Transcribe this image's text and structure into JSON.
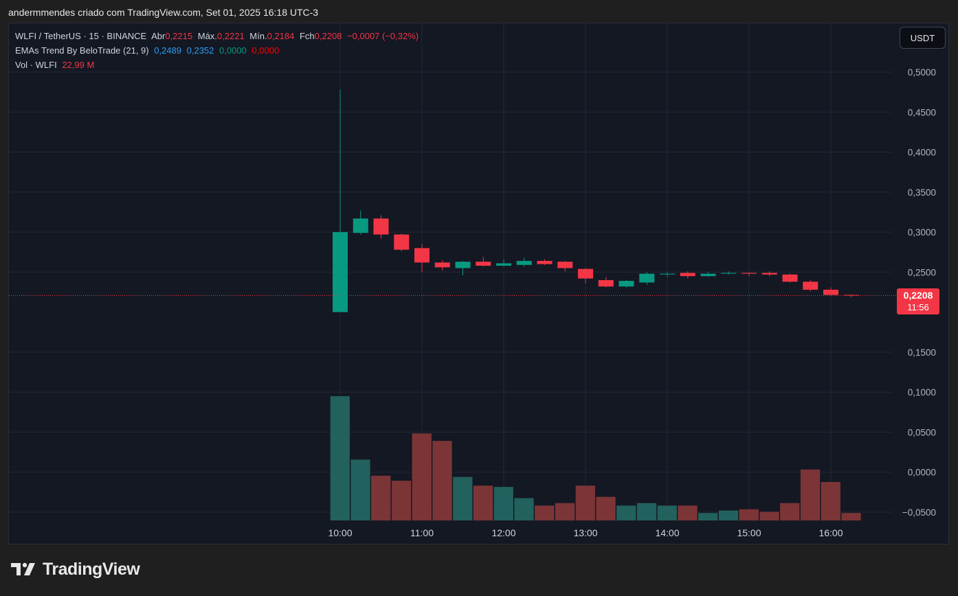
{
  "caption": "andermmendes criado com TradingView.com, Set 01, 2025 16:18 UTC-3",
  "legend": {
    "symbol": "WLFI / TetherUS · 15 · BINANCE",
    "open_label": "Abr",
    "open": "0,2215",
    "high_label": "Máx.",
    "high": "0,2221",
    "low_label": "Mín.",
    "low": "0,2184",
    "close_label": "Fch",
    "close": "0,2208",
    "change": "−0,0007 (−0,32%)",
    "ema_name": "EMAs Trend By BeloTrade (21, 9)",
    "ema_v1": "0,2489",
    "ema_v2": "0,2352",
    "ema_v3": "0,0000",
    "ema_v4": "0,0000",
    "vol_name": "Vol · WLFI",
    "vol_value": "22,99 M"
  },
  "currency_button": "USDT",
  "price_tag": {
    "price": "0,2208",
    "countdown": "11:56"
  },
  "logo_text": "TradingView",
  "colors": {
    "up": "#089981",
    "down": "#f23645",
    "vol_up": "#22615d",
    "vol_down": "#7c3537",
    "background": "#141823",
    "grid": "#242836"
  },
  "chart_data": {
    "type": "candlestick",
    "interval": "15",
    "last_price": 0.2208,
    "y_ticks": [
      "0,5000",
      "0,4500",
      "0,4000",
      "0,3500",
      "0,3000",
      "0,2500",
      "0,1500",
      "0,1000",
      "0,0500",
      "0,0000",
      "−0,0500"
    ],
    "y_tick_values": [
      0.5,
      0.45,
      0.4,
      0.35,
      0.3,
      0.25,
      0.15,
      0.1,
      0.05,
      0.0,
      -0.05
    ],
    "ylim": [
      -0.062,
      0.53
    ],
    "x_ticks": [
      "10:00",
      "11:00",
      "12:00",
      "13:00",
      "14:00",
      "15:00",
      "16:00"
    ],
    "x_tick_values": [
      "10:00",
      "11:00",
      "12:00",
      "13:00",
      "14:00",
      "15:00",
      "16:00"
    ],
    "time": [
      "10:00",
      "10:15",
      "10:30",
      "10:45",
      "11:00",
      "11:15",
      "11:30",
      "11:45",
      "12:00",
      "12:15",
      "12:30",
      "12:45",
      "13:00",
      "13:15",
      "13:30",
      "13:45",
      "14:00",
      "14:15",
      "14:30",
      "14:45",
      "15:00",
      "15:15",
      "15:30",
      "15:45",
      "16:00",
      "16:15"
    ],
    "candles": [
      {
        "o": 0.2,
        "h": 0.478,
        "l": 0.2,
        "c": 0.3
      },
      {
        "o": 0.299,
        "h": 0.327,
        "l": 0.297,
        "c": 0.317
      },
      {
        "o": 0.317,
        "h": 0.321,
        "l": 0.292,
        "c": 0.297
      },
      {
        "o": 0.297,
        "h": 0.298,
        "l": 0.276,
        "c": 0.278
      },
      {
        "o": 0.28,
        "h": 0.285,
        "l": 0.25,
        "c": 0.262
      },
      {
        "o": 0.262,
        "h": 0.265,
        "l": 0.252,
        "c": 0.256
      },
      {
        "o": 0.255,
        "h": 0.264,
        "l": 0.246,
        "c": 0.263
      },
      {
        "o": 0.263,
        "h": 0.269,
        "l": 0.257,
        "c": 0.258
      },
      {
        "o": 0.258,
        "h": 0.266,
        "l": 0.257,
        "c": 0.261
      },
      {
        "o": 0.259,
        "h": 0.268,
        "l": 0.257,
        "c": 0.264
      },
      {
        "o": 0.264,
        "h": 0.266,
        "l": 0.259,
        "c": 0.26
      },
      {
        "o": 0.263,
        "h": 0.264,
        "l": 0.251,
        "c": 0.255
      },
      {
        "o": 0.254,
        "h": 0.255,
        "l": 0.236,
        "c": 0.242
      },
      {
        "o": 0.24,
        "h": 0.244,
        "l": 0.231,
        "c": 0.232
      },
      {
        "o": 0.232,
        "h": 0.24,
        "l": 0.231,
        "c": 0.239
      },
      {
        "o": 0.237,
        "h": 0.25,
        "l": 0.234,
        "c": 0.248
      },
      {
        "o": 0.247,
        "h": 0.25,
        "l": 0.244,
        "c": 0.248
      },
      {
        "o": 0.249,
        "h": 0.251,
        "l": 0.242,
        "c": 0.245
      },
      {
        "o": 0.245,
        "h": 0.25,
        "l": 0.244,
        "c": 0.248
      },
      {
        "o": 0.248,
        "h": 0.251,
        "l": 0.247,
        "c": 0.249
      },
      {
        "o": 0.249,
        "h": 0.25,
        "l": 0.245,
        "c": 0.248
      },
      {
        "o": 0.249,
        "h": 0.251,
        "l": 0.245,
        "c": 0.247
      },
      {
        "o": 0.247,
        "h": 0.248,
        "l": 0.237,
        "c": 0.238
      },
      {
        "o": 0.238,
        "h": 0.24,
        "l": 0.226,
        "c": 0.228
      },
      {
        "o": 0.228,
        "h": 0.231,
        "l": 0.221,
        "c": 0.2215
      },
      {
        "o": 0.2215,
        "h": 0.2221,
        "l": 0.2184,
        "c": 0.2208
      }
    ],
    "volume_relative": [
      1.0,
      0.49,
      0.36,
      0.32,
      0.7,
      0.64,
      0.35,
      0.28,
      0.27,
      0.18,
      0.12,
      0.14,
      0.28,
      0.19,
      0.12,
      0.14,
      0.12,
      0.12,
      0.06,
      0.08,
      0.09,
      0.07,
      0.14,
      0.41,
      0.31,
      0.06
    ]
  }
}
